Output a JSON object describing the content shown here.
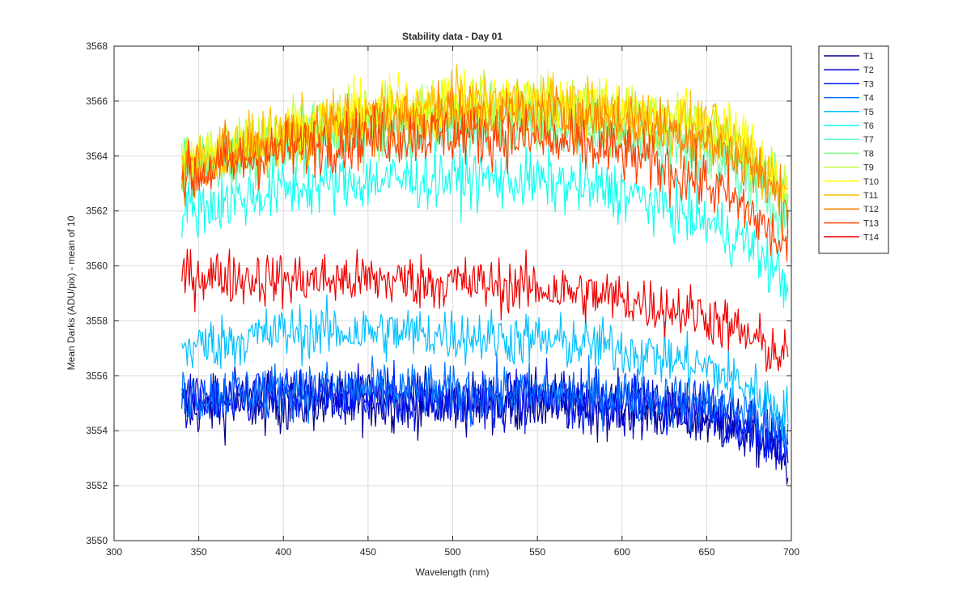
{
  "chart_data": {
    "type": "line",
    "title": "Stability data - Day 01",
    "xlabel": "Wavelength (nm)",
    "ylabel": "Mean Darks (ADU/pix) - mean of 10",
    "xlim": [
      300,
      700
    ],
    "ylim": [
      3550,
      3568
    ],
    "xticks": [
      300,
      350,
      400,
      450,
      500,
      550,
      600,
      650,
      700
    ],
    "yticks": [
      3550,
      3552,
      3554,
      3556,
      3558,
      3560,
      3562,
      3564,
      3566,
      3568
    ],
    "xtick_labels": [
      "300",
      "350",
      "400",
      "450",
      "500",
      "550",
      "600",
      "650",
      "700"
    ],
    "ytick_labels": [
      "3550",
      "3552",
      "3554",
      "3556",
      "3558",
      "3560",
      "3562",
      "3564",
      "3566",
      "3568"
    ],
    "grid": true,
    "legend_position": "outside-top-right",
    "x_range": [
      340,
      698
    ],
    "noise_note": "each series is a noisy trace; values below are the smoothed trend at the listed x-points",
    "x_points": [
      340,
      400,
      450,
      500,
      550,
      600,
      650,
      675,
      698
    ],
    "series": [
      {
        "name": "T1",
        "color": "#00008F",
        "noise": 1.4,
        "trend": [
          3554.8,
          3555.0,
          3555.1,
          3555.0,
          3555.0,
          3554.9,
          3554.4,
          3554.0,
          3552.8
        ]
      },
      {
        "name": "T2",
        "color": "#0000D4",
        "noise": 1.3,
        "trend": [
          3555.0,
          3555.2,
          3555.2,
          3555.1,
          3555.1,
          3555.0,
          3554.6,
          3554.2,
          3553.1
        ]
      },
      {
        "name": "T3",
        "color": "#0020FF",
        "noise": 1.3,
        "trend": [
          3555.1,
          3555.3,
          3555.3,
          3555.2,
          3555.2,
          3555.1,
          3554.8,
          3554.4,
          3553.4
        ]
      },
      {
        "name": "T4",
        "color": "#0070FF",
        "noise": 1.3,
        "trend": [
          3555.3,
          3555.5,
          3555.5,
          3555.4,
          3555.4,
          3555.3,
          3555.0,
          3554.7,
          3553.8
        ]
      },
      {
        "name": "T5",
        "color": "#00C0FF",
        "noise": 1.3,
        "trend": [
          3557.0,
          3557.6,
          3557.6,
          3557.5,
          3557.3,
          3557.0,
          3556.3,
          3555.6,
          3554.6
        ]
      },
      {
        "name": "T6",
        "color": "#10FFEF",
        "noise": 1.4,
        "trend": [
          3562.0,
          3562.8,
          3563.1,
          3563.2,
          3563.1,
          3562.7,
          3561.6,
          3560.8,
          3559.3
        ]
      },
      {
        "name": "T7",
        "color": "#60FFC0",
        "noise": 1.4,
        "trend": [
          3563.4,
          3564.3,
          3564.8,
          3565.0,
          3565.1,
          3564.8,
          3564.0,
          3563.1,
          3561.8
        ]
      },
      {
        "name": "T8",
        "color": "#80FF80",
        "noise": 1.4,
        "trend": [
          3563.6,
          3564.6,
          3565.2,
          3565.5,
          3565.5,
          3565.2,
          3564.5,
          3563.6,
          3562.2
        ]
      },
      {
        "name": "T9",
        "color": "#C0FF40",
        "noise": 1.4,
        "trend": [
          3563.7,
          3564.8,
          3565.5,
          3565.9,
          3565.9,
          3565.6,
          3565.0,
          3564.2,
          3562.6
        ]
      },
      {
        "name": "T10",
        "color": "#FFFF00",
        "noise": 1.4,
        "trend": [
          3563.7,
          3564.9,
          3565.6,
          3566.0,
          3566.0,
          3565.8,
          3565.2,
          3564.4,
          3562.8
        ]
      },
      {
        "name": "T11",
        "color": "#FFBF00",
        "noise": 1.4,
        "trend": [
          3563.6,
          3564.8,
          3565.5,
          3565.9,
          3565.9,
          3565.6,
          3565.0,
          3564.1,
          3562.6
        ]
      },
      {
        "name": "T12",
        "color": "#FF8000",
        "noise": 1.4,
        "trend": [
          3563.5,
          3564.6,
          3565.2,
          3565.5,
          3565.5,
          3565.3,
          3564.6,
          3563.7,
          3562.2
        ]
      },
      {
        "name": "T13",
        "color": "#FF4000",
        "noise": 1.4,
        "trend": [
          3563.2,
          3564.2,
          3564.7,
          3564.8,
          3564.6,
          3564.1,
          3563.0,
          3562.0,
          3560.5
        ]
      },
      {
        "name": "T14",
        "color": "#EE0000",
        "noise": 1.3,
        "trend": [
          3559.7,
          3559.5,
          3559.5,
          3559.4,
          3559.2,
          3558.8,
          3558.2,
          3557.4,
          3556.6
        ]
      }
    ]
  }
}
